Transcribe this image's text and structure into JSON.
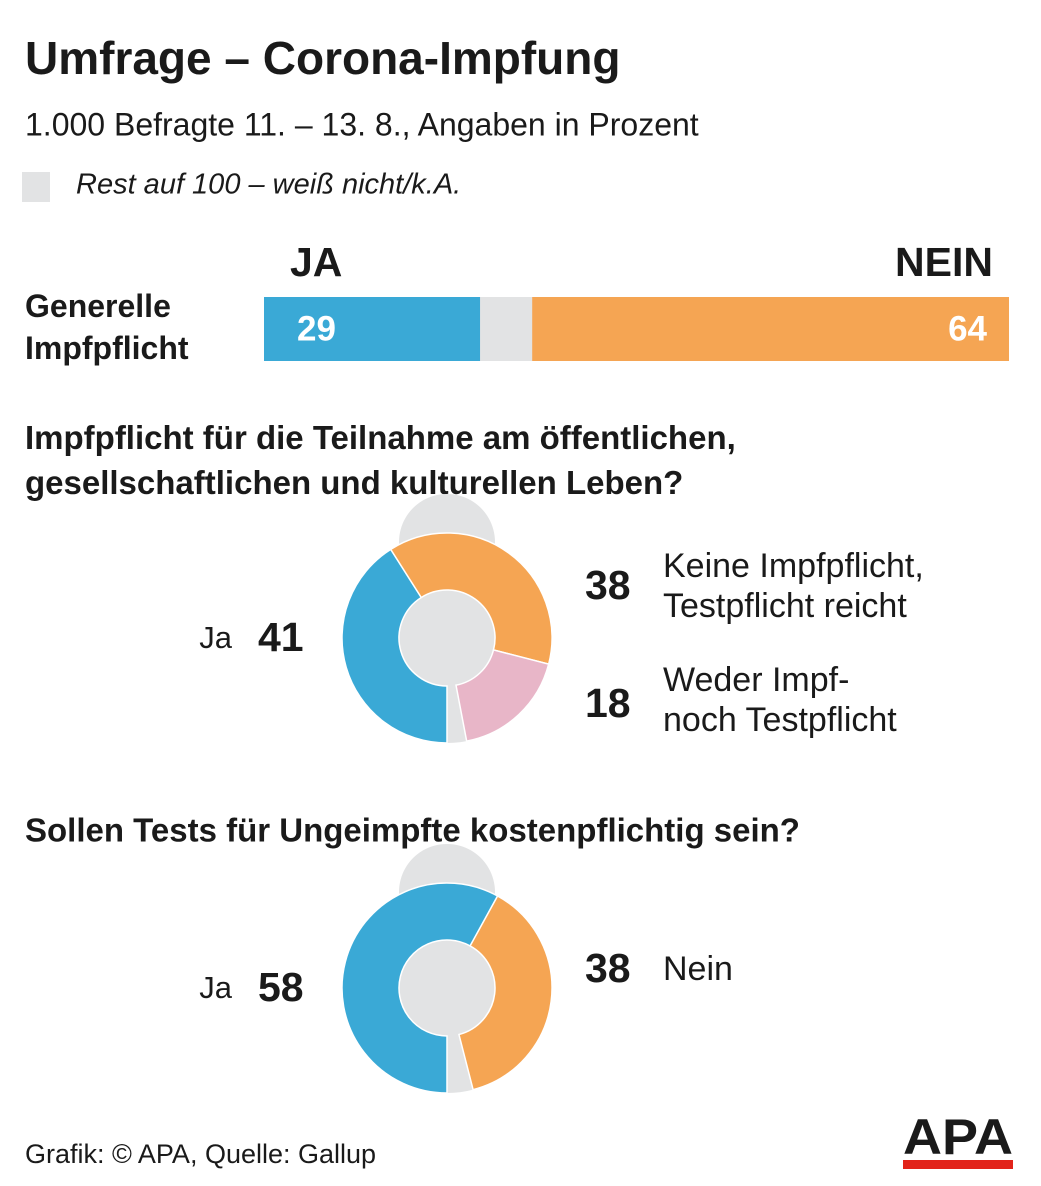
{
  "header": {
    "title": "Umfrage – Corona-Impfung",
    "subtitle": "1.000 Befragte 11. – 13. 8., Angaben in Prozent",
    "rest_note": "Rest auf 100 – weiß nicht/k.A.",
    "rest_color": "#e2e3e4"
  },
  "chart_data": [
    {
      "type": "stacked-bar",
      "categories": [
        "Generelle\nImpfpflicht"
      ],
      "xlim": [
        0,
        100
      ],
      "series": [
        {
          "name": "JA",
          "color": "#3aa9d6",
          "values": [
            29
          ]
        },
        {
          "name": "NEIN",
          "color": "#f5a553",
          "values": [
            64
          ],
          "anchor": "end"
        }
      ]
    },
    {
      "type": "donut",
      "title": "Impfpflicht für die Teilnahme am öffentlichen,\ngesellschaftlichen und kulturellen Leben?",
      "categories": [
        "Ja",
        "Keine Impfpflicht,\nTestpflicht reicht",
        "Weder Impf-\nnoch Testpflicht"
      ],
      "values": [
        41,
        38,
        18
      ],
      "colors": [
        "#3aa9d6",
        "#f5a553",
        "#e8b6c8"
      ],
      "range": [
        0,
        100
      ]
    },
    {
      "type": "donut",
      "title": "Sollen Tests für Ungeimpfte kostenpflichtig sein?",
      "categories": [
        "Ja",
        "Nein"
      ],
      "values": [
        58,
        38
      ],
      "colors": [
        "#3aa9d6",
        "#f5a553"
      ],
      "range": [
        0,
        100
      ]
    }
  ],
  "footer": {
    "source": "Grafik: © APA, Quelle: Gallup",
    "logo": "APA"
  }
}
